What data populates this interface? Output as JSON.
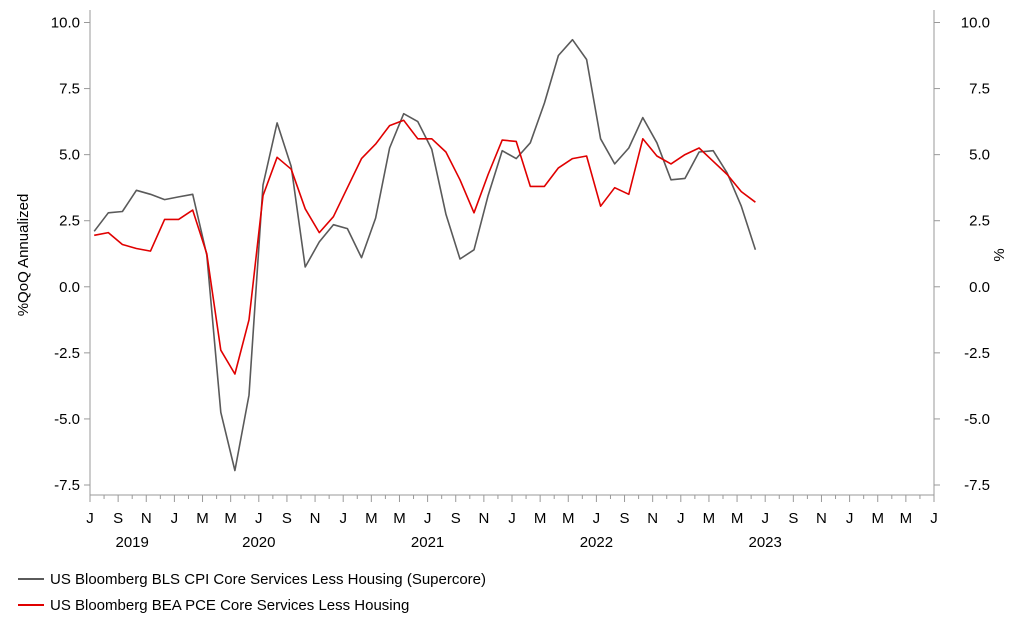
{
  "chart_data": {
    "type": "line",
    "ylabel_left": "%QoQ Annualized",
    "ylabel_right": "%",
    "ylim": [
      -7.5,
      10.0
    ],
    "yticks": [
      "10.0",
      "7.5",
      "5.0",
      "2.5",
      "0.0",
      "-2.5",
      "-5.0",
      "-7.5"
    ],
    "month_labels": [
      "J",
      "S",
      "N",
      "J",
      "M",
      "M",
      "J",
      "S",
      "N",
      "J",
      "M",
      "M",
      "J",
      "S",
      "N",
      "J",
      "M",
      "M",
      "J",
      "S",
      "N",
      "J",
      "M",
      "M",
      "J",
      "S",
      "N",
      "J",
      "M",
      "M",
      "J"
    ],
    "years": [
      "2019",
      "2020",
      "2021",
      "2022",
      "2023"
    ],
    "x_start": "2019-07",
    "x_end": "2023-07",
    "series": [
      {
        "name": "US Bloomberg BLS CPI Core Services Less Housing (Supercore)",
        "color": "#5a5a5a",
        "values": [
          2.1,
          2.8,
          2.85,
          3.65,
          3.5,
          3.3,
          3.4,
          3.5,
          1.2,
          -4.75,
          -6.95,
          -4.1,
          3.85,
          6.2,
          4.55,
          0.75,
          1.7,
          2.35,
          2.2,
          1.1,
          2.6,
          5.25,
          6.55,
          6.25,
          5.2,
          2.75,
          1.05,
          1.4,
          3.45,
          5.15,
          4.85,
          5.45,
          6.95,
          8.75,
          9.35,
          8.6,
          5.6,
          4.65,
          5.25,
          6.4,
          5.45,
          4.05,
          4.1,
          5.1,
          5.15,
          4.3,
          3.05,
          1.4
        ]
      },
      {
        "name": "US Bloomberg BEA PCE Core Services Less Housing",
        "color": "#e00000",
        "values": [
          1.95,
          2.05,
          1.6,
          1.45,
          1.35,
          2.55,
          2.55,
          2.9,
          1.25,
          -2.4,
          -3.3,
          -1.25,
          3.45,
          4.9,
          4.45,
          2.95,
          2.05,
          2.65,
          3.75,
          4.85,
          5.4,
          6.1,
          6.3,
          5.6,
          5.6,
          5.1,
          4.05,
          2.8,
          4.25,
          5.55,
          5.5,
          3.8,
          3.8,
          4.5,
          4.85,
          4.95,
          3.05,
          3.75,
          3.5,
          5.6,
          4.95,
          4.65,
          5.0,
          5.25,
          4.75,
          4.25,
          3.6,
          3.2
        ]
      }
    ]
  }
}
